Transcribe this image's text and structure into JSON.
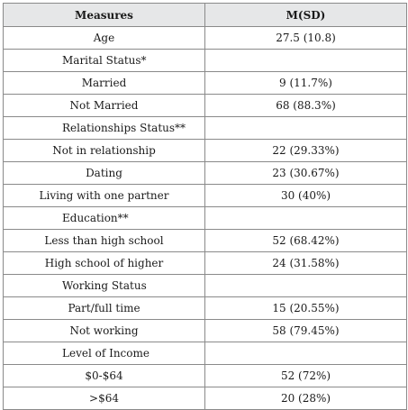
{
  "table": {
    "headers": [
      "Measures",
      "M(SD)"
    ],
    "rows": [
      {
        "label": "Age",
        "value": "27.5 (10.8)",
        "section": false
      },
      {
        "label": "Marital Status*",
        "value": "",
        "section": true
      },
      {
        "label": "Married",
        "value": "9 (11.7%)",
        "section": false
      },
      {
        "label": "Not Married",
        "value": "68 (88.3%)",
        "section": false
      },
      {
        "label": "Relationships Status**",
        "value": "",
        "section": true
      },
      {
        "label": "Not in relationship",
        "value": "22 (29.33%)",
        "section": false
      },
      {
        "label": "Dating",
        "value": "23 (30.67%)",
        "section": false
      },
      {
        "label": "Living with one partner",
        "value": "30 (40%)",
        "section": false
      },
      {
        "label": "Education**",
        "value": "",
        "section": true
      },
      {
        "label": "Less than high school",
        "value": "52 (68.42%)",
        "section": false
      },
      {
        "label": "High school of higher",
        "value": "24 (31.58%)",
        "section": false
      },
      {
        "label": "Working Status",
        "value": "",
        "section": true
      },
      {
        "label": "Part/full time",
        "value": "15 (20.55%)",
        "section": false
      },
      {
        "label": "Not working",
        "value": "58 (79.45%)",
        "section": false
      },
      {
        "label": "Level of Income",
        "value": "",
        "section": true
      },
      {
        "label": "$0-$64",
        "value": "52 (72%)",
        "section": false
      },
      {
        "label": ">$64",
        "value": "20 (28%)",
        "section": false
      }
    ]
  }
}
